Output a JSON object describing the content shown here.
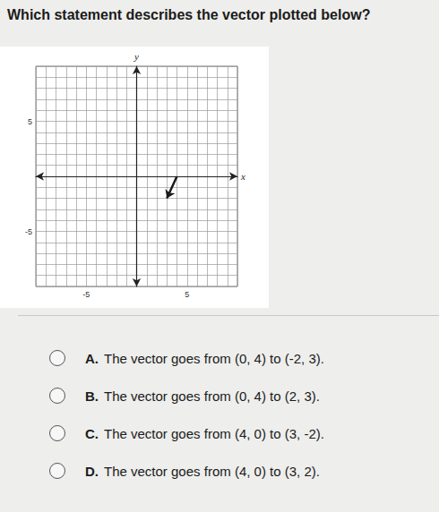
{
  "question": "Which statement describes the vector plotted below?",
  "chart_data": {
    "type": "vector",
    "x": [
      4,
      3
    ],
    "values": [
      0,
      -2
    ],
    "xlabel": "x",
    "ylabel": "y",
    "xlim": [
      -10,
      10
    ],
    "ylim": [
      -10,
      10
    ],
    "xticks": [
      -5,
      5
    ],
    "yticks": [
      -5,
      5
    ],
    "grid": true,
    "marker": "arrow",
    "color": "#1a1a1a"
  },
  "options": [
    {
      "letter": "A.",
      "text": "The vector goes from (0, 4) to (-2, 3)."
    },
    {
      "letter": "B.",
      "text": "The vector goes from (0, 4) to (2, 3)."
    },
    {
      "letter": "C.",
      "text": "The vector goes from (4, 0) to (3, -2)."
    },
    {
      "letter": "D.",
      "text": "The vector goes from (4, 0) to (3, 2)."
    }
  ]
}
